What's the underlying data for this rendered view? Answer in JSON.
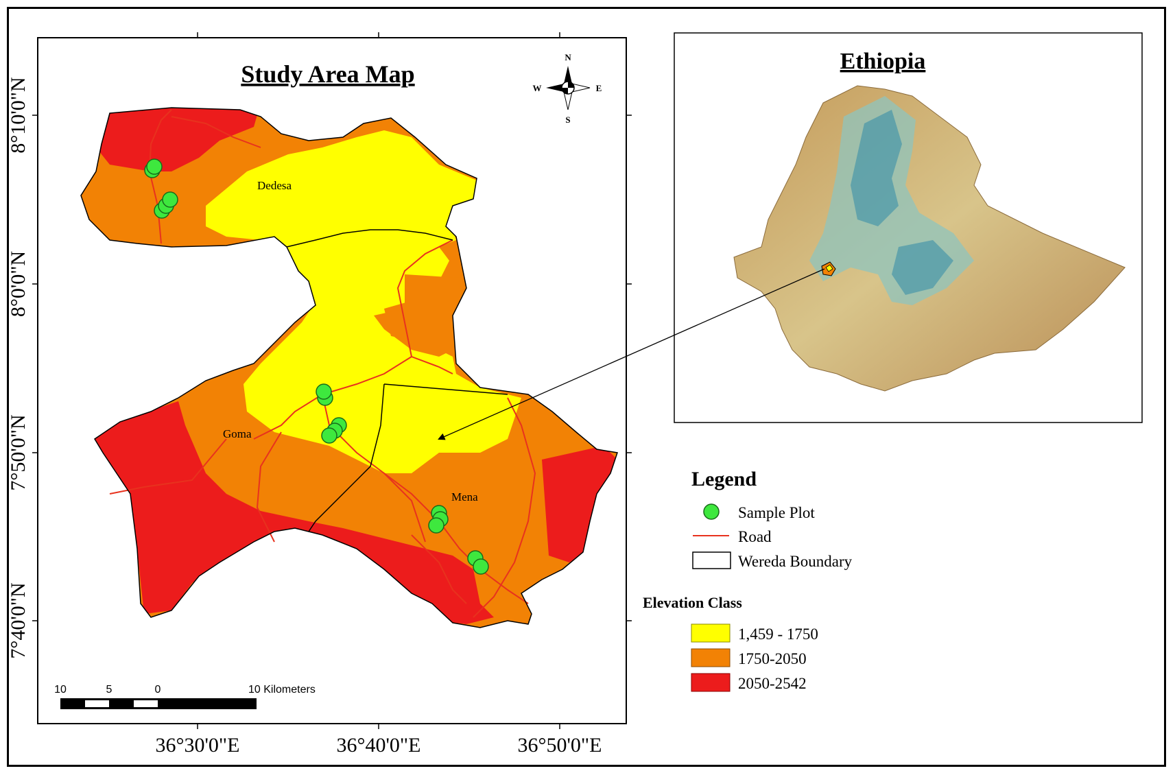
{
  "main_map": {
    "title": "Study Area Map",
    "x_ticks": [
      "36°30'0\"E",
      "36°40'0\"E",
      "36°50'0\"E"
    ],
    "y_ticks": [
      "8°10'0\"N",
      "8°0'0\"N",
      "7°50'0\"N",
      "7°40'0\"N"
    ],
    "place_labels": [
      "Dedesa",
      "Goma",
      "Mena"
    ],
    "north_arrow": {
      "n": "N",
      "s": "S",
      "e": "E",
      "w": "W"
    },
    "scale_bar": {
      "labels": [
        "10",
        "5",
        "0",
        "10 Kilometers"
      ]
    }
  },
  "inset_map": {
    "title": "Ethiopia"
  },
  "legend": {
    "title": "Legend",
    "items": [
      {
        "label": "Sample Plot",
        "symbol": "sample-plot",
        "color": "#3ee83e"
      },
      {
        "label": "Road",
        "symbol": "road",
        "color": "#e8321e"
      },
      {
        "label": "Wereda Boundary",
        "symbol": "boundary",
        "color": "#000000"
      }
    ],
    "elevation_title": "Elevation Class",
    "elevation_classes": [
      {
        "label": "1,459 - 1750",
        "color": "#ffff00"
      },
      {
        "label": "1750-2050",
        "color": "#f28205"
      },
      {
        "label": "2050-2542",
        "color": "#ec1c1c"
      }
    ]
  }
}
